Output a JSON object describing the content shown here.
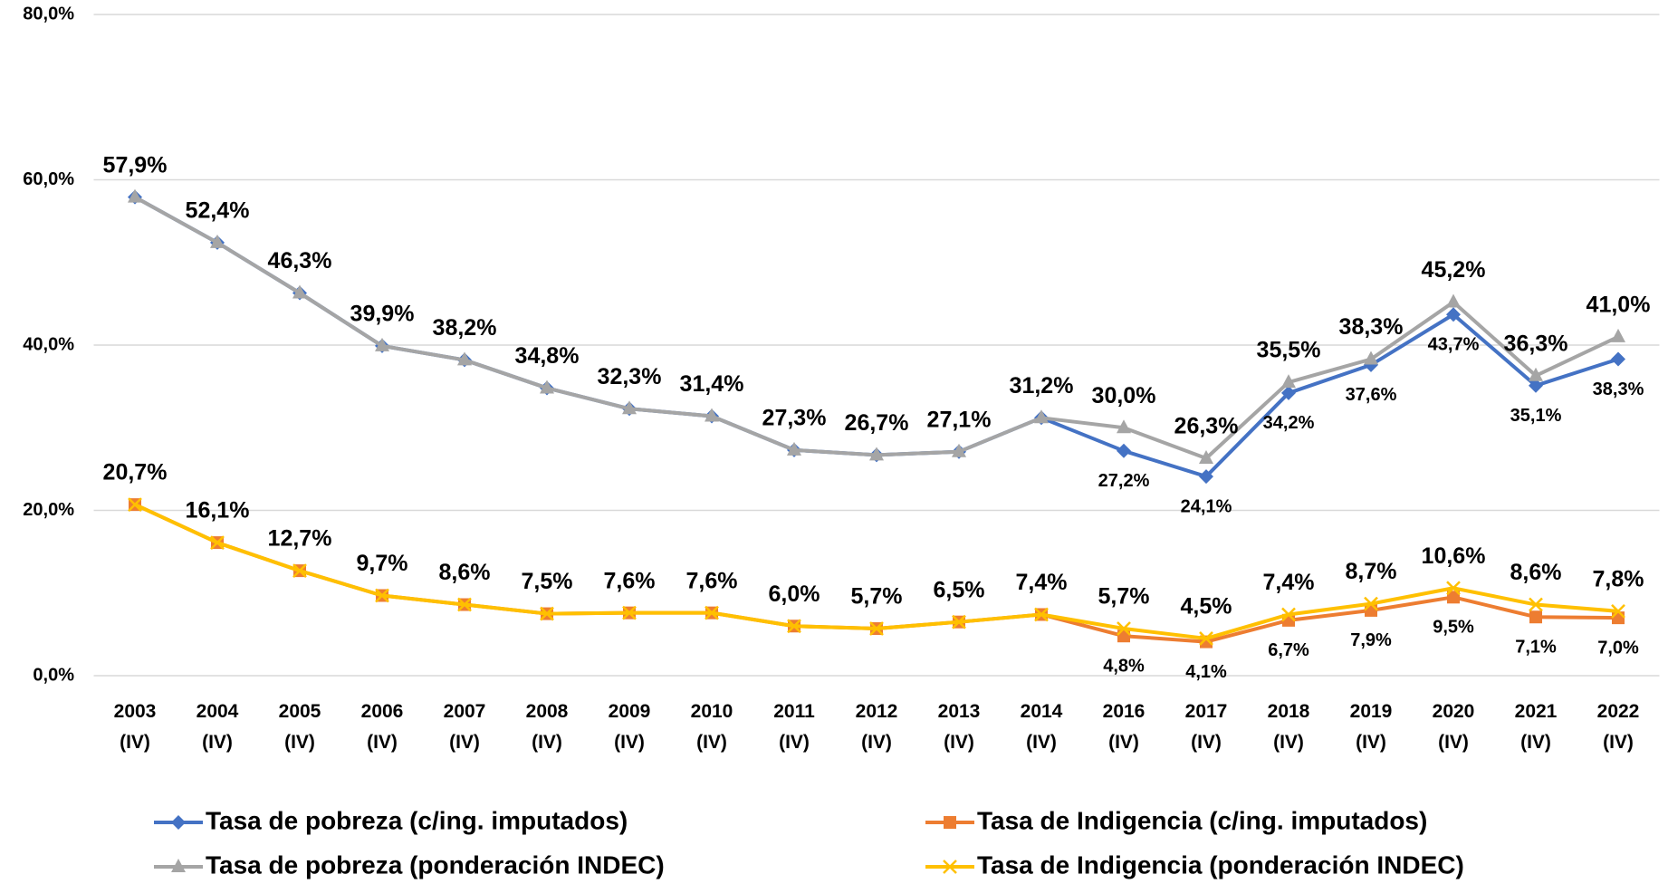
{
  "chart_data": {
    "type": "line",
    "categories": [
      "2003 (IV)",
      "2004 (IV)",
      "2005 (IV)",
      "2006 (IV)",
      "2007 (IV)",
      "2008 (IV)",
      "2009 (IV)",
      "2010 (IV)",
      "2011 (IV)",
      "2012 (IV)",
      "2013 (IV)",
      "2014 (IV)",
      "2016 (IV)",
      "2017 (IV)",
      "2018 (IV)",
      "2019 (IV)",
      "2020 (IV)",
      "2021 (IV)",
      "2022 (IV)"
    ],
    "series": [
      {
        "name": "Tasa de pobreza (c/ing. imputados)",
        "color": "#4472c4",
        "marker": "diamond",
        "label_side": "below",
        "values": [
          57.9,
          52.4,
          46.3,
          39.9,
          38.2,
          34.8,
          32.3,
          31.4,
          27.3,
          26.7,
          27.1,
          31.2,
          27.2,
          24.1,
          34.2,
          37.6,
          43.7,
          35.1,
          38.3
        ],
        "value_labels": [
          null,
          null,
          null,
          null,
          null,
          null,
          null,
          null,
          null,
          null,
          null,
          null,
          "27,2%",
          "24,1%",
          "34,2%",
          "37,6%",
          "43,7%",
          "35,1%",
          "38,3%"
        ]
      },
      {
        "name": "Tasa de Indigencia (c/ing. imputados)",
        "color": "#ed7d31",
        "marker": "square",
        "label_side": "below",
        "values": [
          20.7,
          16.1,
          12.7,
          9.7,
          8.6,
          7.5,
          7.6,
          7.6,
          6.0,
          5.7,
          6.5,
          7.4,
          4.8,
          4.1,
          6.7,
          7.9,
          9.5,
          7.1,
          7.0
        ],
        "value_labels": [
          null,
          null,
          null,
          null,
          null,
          null,
          null,
          null,
          null,
          null,
          null,
          null,
          "4,8%",
          "4,1%",
          "6,7%",
          "7,9%",
          "9,5%",
          "7,1%",
          "7,0%"
        ]
      },
      {
        "name": "Tasa de pobreza (ponderación INDEC)",
        "color": "#a5a5a5",
        "marker": "triangle",
        "label_side": "above",
        "values": [
          57.9,
          52.4,
          46.3,
          39.9,
          38.2,
          34.8,
          32.3,
          31.4,
          27.3,
          26.7,
          27.1,
          31.2,
          30.0,
          26.3,
          35.5,
          38.3,
          45.2,
          36.3,
          41.0
        ],
        "value_labels": [
          "57,9%",
          "52,4%",
          "46,3%",
          "39,9%",
          "38,2%",
          "34,8%",
          "32,3%",
          "31,4%",
          "27,3%",
          "26,7%",
          "27,1%",
          "31,2%",
          "30,0%",
          "26,3%",
          "35,5%",
          "38,3%",
          "45,2%",
          "36,3%",
          "41,0%"
        ]
      },
      {
        "name": "Tasa de Indigencia (ponderación INDEC)",
        "color": "#ffc000",
        "marker": "x",
        "label_side": "above",
        "values": [
          20.7,
          16.1,
          12.7,
          9.7,
          8.6,
          7.5,
          7.6,
          7.6,
          6.0,
          5.7,
          6.5,
          7.4,
          5.7,
          4.5,
          7.4,
          8.7,
          10.6,
          8.6,
          7.8
        ],
        "value_labels": [
          "20,7%",
          "16,1%",
          "12,7%",
          "9,7%",
          "8,6%",
          "7,5%",
          "7,6%",
          "7,6%",
          "6,0%",
          "5,7%",
          "6,5%",
          "7,4%",
          "5,7%",
          "4,5%",
          "7,4%",
          "8,7%",
          "10,6%",
          "8,6%",
          "7,8%"
        ]
      }
    ],
    "ylim": [
      0,
      80
    ],
    "yticks": [
      {
        "value": 0,
        "label": "0,0%"
      },
      {
        "value": 20,
        "label": "20,0%"
      },
      {
        "value": 40,
        "label": "40,0%"
      },
      {
        "value": 60,
        "label": "60,0%"
      },
      {
        "value": 80,
        "label": "80,0%"
      }
    ],
    "grid": true
  }
}
